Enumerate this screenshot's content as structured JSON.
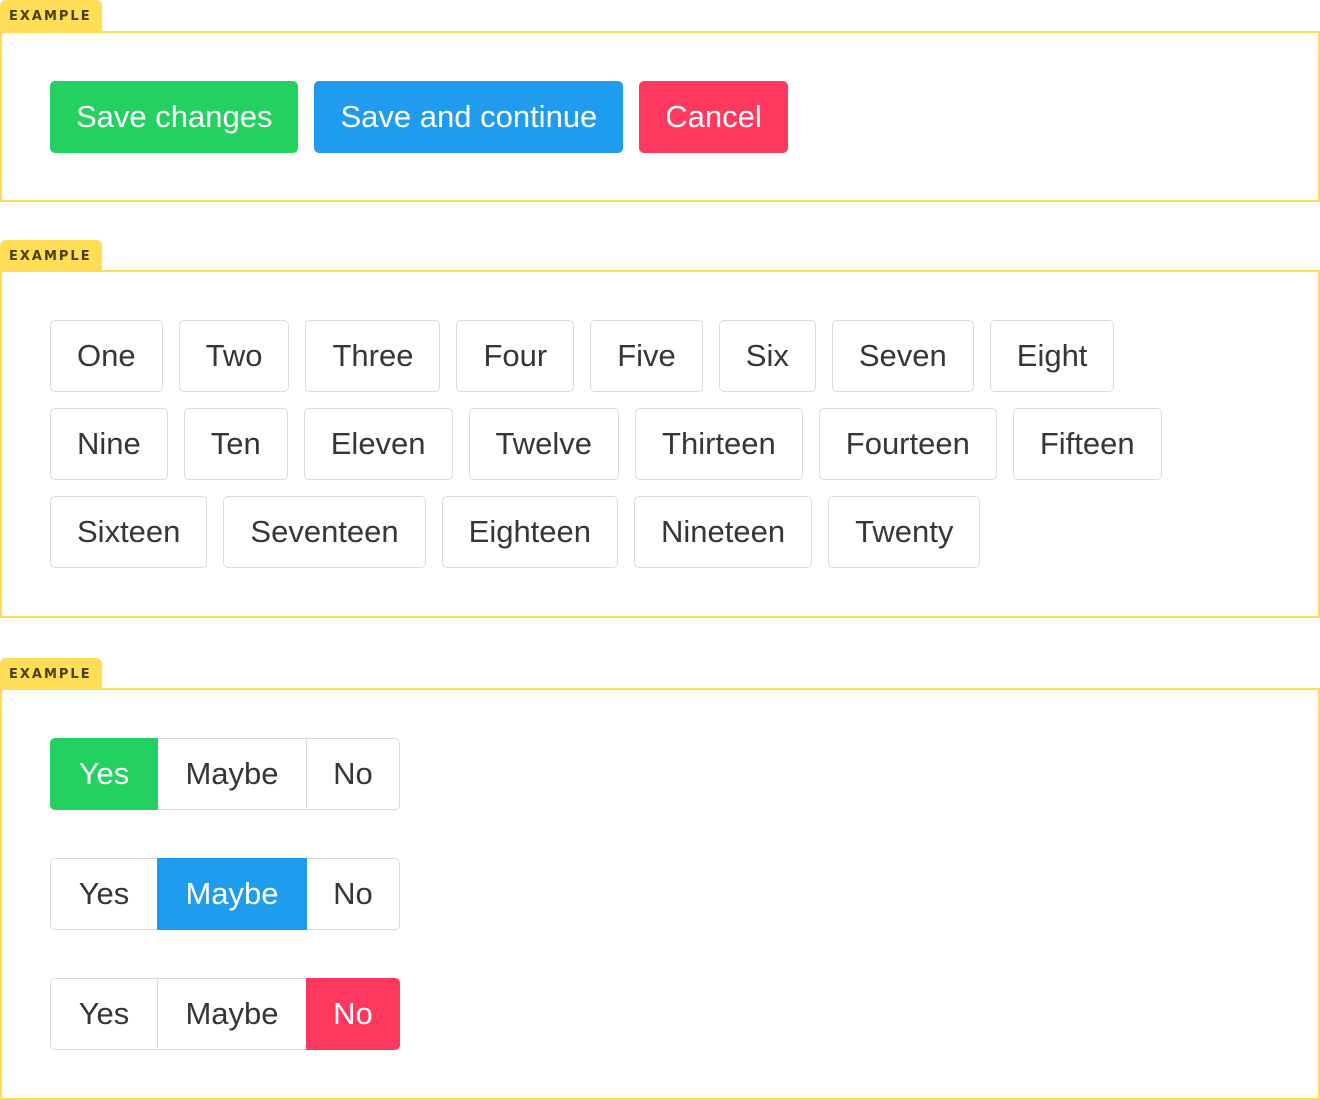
{
  "tag_label": "EXAMPLE",
  "colors": {
    "success": "#23d160",
    "info": "#209cee",
    "danger": "#ff3860",
    "tag": "#ffdd57"
  },
  "example1": {
    "buttons": [
      {
        "label": "Save changes",
        "color": "#23d160"
      },
      {
        "label": "Save and continue",
        "color": "#209cee"
      },
      {
        "label": "Cancel",
        "color": "#ff3860"
      }
    ]
  },
  "example2": {
    "rows": [
      [
        "One",
        "Two",
        "Three",
        "Four",
        "Five",
        "Six",
        "Seven",
        "Eight"
      ],
      [
        "Nine",
        "Ten",
        "Eleven",
        "Twelve",
        "Thirteen",
        "Fourteen",
        "Fifteen"
      ],
      [
        "Sixteen",
        "Seventeen",
        "Eighteen",
        "Nineteen",
        "Twenty"
      ]
    ]
  },
  "example3": {
    "groups": [
      {
        "options": [
          "Yes",
          "Maybe",
          "No"
        ],
        "selected": 0,
        "color": "#23d160"
      },
      {
        "options": [
          "Yes",
          "Maybe",
          "No"
        ],
        "selected": 1,
        "color": "#209cee"
      },
      {
        "options": [
          "Yes",
          "Maybe",
          "No"
        ],
        "selected": 2,
        "color": "#ff3860"
      }
    ]
  }
}
